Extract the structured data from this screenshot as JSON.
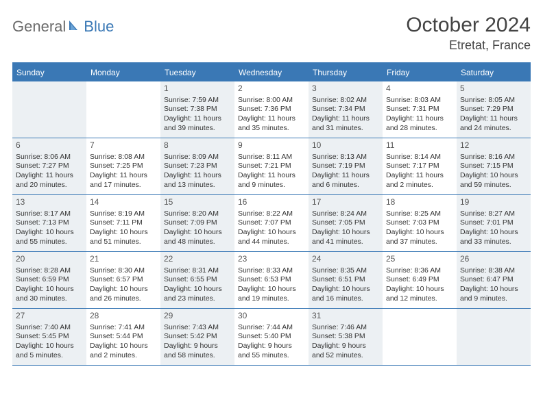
{
  "logo": {
    "part1": "General",
    "part2": "Blue"
  },
  "title": "October 2024",
  "location": "Etretat, France",
  "colors": {
    "accent": "#3a78b5",
    "shade": "#ecf0f3",
    "text": "#333333",
    "logo_gray": "#6b6b6b"
  },
  "day_headers": [
    "Sunday",
    "Monday",
    "Tuesday",
    "Wednesday",
    "Thursday",
    "Friday",
    "Saturday"
  ],
  "weeks": [
    [
      {
        "blank": true,
        "shade": true
      },
      {
        "blank": true,
        "shade": false
      },
      {
        "day": "1",
        "shade": true,
        "sunrise": "Sunrise: 7:59 AM",
        "sunset": "Sunset: 7:38 PM",
        "daylight1": "Daylight: 11 hours",
        "daylight2": "and 39 minutes."
      },
      {
        "day": "2",
        "shade": false,
        "sunrise": "Sunrise: 8:00 AM",
        "sunset": "Sunset: 7:36 PM",
        "daylight1": "Daylight: 11 hours",
        "daylight2": "and 35 minutes."
      },
      {
        "day": "3",
        "shade": true,
        "sunrise": "Sunrise: 8:02 AM",
        "sunset": "Sunset: 7:34 PM",
        "daylight1": "Daylight: 11 hours",
        "daylight2": "and 31 minutes."
      },
      {
        "day": "4",
        "shade": false,
        "sunrise": "Sunrise: 8:03 AM",
        "sunset": "Sunset: 7:31 PM",
        "daylight1": "Daylight: 11 hours",
        "daylight2": "and 28 minutes."
      },
      {
        "day": "5",
        "shade": true,
        "sunrise": "Sunrise: 8:05 AM",
        "sunset": "Sunset: 7:29 PM",
        "daylight1": "Daylight: 11 hours",
        "daylight2": "and 24 minutes."
      }
    ],
    [
      {
        "day": "6",
        "shade": true,
        "sunrise": "Sunrise: 8:06 AM",
        "sunset": "Sunset: 7:27 PM",
        "daylight1": "Daylight: 11 hours",
        "daylight2": "and 20 minutes."
      },
      {
        "day": "7",
        "shade": false,
        "sunrise": "Sunrise: 8:08 AM",
        "sunset": "Sunset: 7:25 PM",
        "daylight1": "Daylight: 11 hours",
        "daylight2": "and 17 minutes."
      },
      {
        "day": "8",
        "shade": true,
        "sunrise": "Sunrise: 8:09 AM",
        "sunset": "Sunset: 7:23 PM",
        "daylight1": "Daylight: 11 hours",
        "daylight2": "and 13 minutes."
      },
      {
        "day": "9",
        "shade": false,
        "sunrise": "Sunrise: 8:11 AM",
        "sunset": "Sunset: 7:21 PM",
        "daylight1": "Daylight: 11 hours",
        "daylight2": "and 9 minutes."
      },
      {
        "day": "10",
        "shade": true,
        "sunrise": "Sunrise: 8:13 AM",
        "sunset": "Sunset: 7:19 PM",
        "daylight1": "Daylight: 11 hours",
        "daylight2": "and 6 minutes."
      },
      {
        "day": "11",
        "shade": false,
        "sunrise": "Sunrise: 8:14 AM",
        "sunset": "Sunset: 7:17 PM",
        "daylight1": "Daylight: 11 hours",
        "daylight2": "and 2 minutes."
      },
      {
        "day": "12",
        "shade": true,
        "sunrise": "Sunrise: 8:16 AM",
        "sunset": "Sunset: 7:15 PM",
        "daylight1": "Daylight: 10 hours",
        "daylight2": "and 59 minutes."
      }
    ],
    [
      {
        "day": "13",
        "shade": true,
        "sunrise": "Sunrise: 8:17 AM",
        "sunset": "Sunset: 7:13 PM",
        "daylight1": "Daylight: 10 hours",
        "daylight2": "and 55 minutes."
      },
      {
        "day": "14",
        "shade": false,
        "sunrise": "Sunrise: 8:19 AM",
        "sunset": "Sunset: 7:11 PM",
        "daylight1": "Daylight: 10 hours",
        "daylight2": "and 51 minutes."
      },
      {
        "day": "15",
        "shade": true,
        "sunrise": "Sunrise: 8:20 AM",
        "sunset": "Sunset: 7:09 PM",
        "daylight1": "Daylight: 10 hours",
        "daylight2": "and 48 minutes."
      },
      {
        "day": "16",
        "shade": false,
        "sunrise": "Sunrise: 8:22 AM",
        "sunset": "Sunset: 7:07 PM",
        "daylight1": "Daylight: 10 hours",
        "daylight2": "and 44 minutes."
      },
      {
        "day": "17",
        "shade": true,
        "sunrise": "Sunrise: 8:24 AM",
        "sunset": "Sunset: 7:05 PM",
        "daylight1": "Daylight: 10 hours",
        "daylight2": "and 41 minutes."
      },
      {
        "day": "18",
        "shade": false,
        "sunrise": "Sunrise: 8:25 AM",
        "sunset": "Sunset: 7:03 PM",
        "daylight1": "Daylight: 10 hours",
        "daylight2": "and 37 minutes."
      },
      {
        "day": "19",
        "shade": true,
        "sunrise": "Sunrise: 8:27 AM",
        "sunset": "Sunset: 7:01 PM",
        "daylight1": "Daylight: 10 hours",
        "daylight2": "and 33 minutes."
      }
    ],
    [
      {
        "day": "20",
        "shade": true,
        "sunrise": "Sunrise: 8:28 AM",
        "sunset": "Sunset: 6:59 PM",
        "daylight1": "Daylight: 10 hours",
        "daylight2": "and 30 minutes."
      },
      {
        "day": "21",
        "shade": false,
        "sunrise": "Sunrise: 8:30 AM",
        "sunset": "Sunset: 6:57 PM",
        "daylight1": "Daylight: 10 hours",
        "daylight2": "and 26 minutes."
      },
      {
        "day": "22",
        "shade": true,
        "sunrise": "Sunrise: 8:31 AM",
        "sunset": "Sunset: 6:55 PM",
        "daylight1": "Daylight: 10 hours",
        "daylight2": "and 23 minutes."
      },
      {
        "day": "23",
        "shade": false,
        "sunrise": "Sunrise: 8:33 AM",
        "sunset": "Sunset: 6:53 PM",
        "daylight1": "Daylight: 10 hours",
        "daylight2": "and 19 minutes."
      },
      {
        "day": "24",
        "shade": true,
        "sunrise": "Sunrise: 8:35 AM",
        "sunset": "Sunset: 6:51 PM",
        "daylight1": "Daylight: 10 hours",
        "daylight2": "and 16 minutes."
      },
      {
        "day": "25",
        "shade": false,
        "sunrise": "Sunrise: 8:36 AM",
        "sunset": "Sunset: 6:49 PM",
        "daylight1": "Daylight: 10 hours",
        "daylight2": "and 12 minutes."
      },
      {
        "day": "26",
        "shade": true,
        "sunrise": "Sunrise: 8:38 AM",
        "sunset": "Sunset: 6:47 PM",
        "daylight1": "Daylight: 10 hours",
        "daylight2": "and 9 minutes."
      }
    ],
    [
      {
        "day": "27",
        "shade": true,
        "sunrise": "Sunrise: 7:40 AM",
        "sunset": "Sunset: 5:45 PM",
        "daylight1": "Daylight: 10 hours",
        "daylight2": "and 5 minutes."
      },
      {
        "day": "28",
        "shade": false,
        "sunrise": "Sunrise: 7:41 AM",
        "sunset": "Sunset: 5:44 PM",
        "daylight1": "Daylight: 10 hours",
        "daylight2": "and 2 minutes."
      },
      {
        "day": "29",
        "shade": true,
        "sunrise": "Sunrise: 7:43 AM",
        "sunset": "Sunset: 5:42 PM",
        "daylight1": "Daylight: 9 hours",
        "daylight2": "and 58 minutes."
      },
      {
        "day": "30",
        "shade": false,
        "sunrise": "Sunrise: 7:44 AM",
        "sunset": "Sunset: 5:40 PM",
        "daylight1": "Daylight: 9 hours",
        "daylight2": "and 55 minutes."
      },
      {
        "day": "31",
        "shade": true,
        "sunrise": "Sunrise: 7:46 AM",
        "sunset": "Sunset: 5:38 PM",
        "daylight1": "Daylight: 9 hours",
        "daylight2": "and 52 minutes."
      },
      {
        "blank": true,
        "shade": false
      },
      {
        "blank": true,
        "shade": true
      }
    ]
  ]
}
